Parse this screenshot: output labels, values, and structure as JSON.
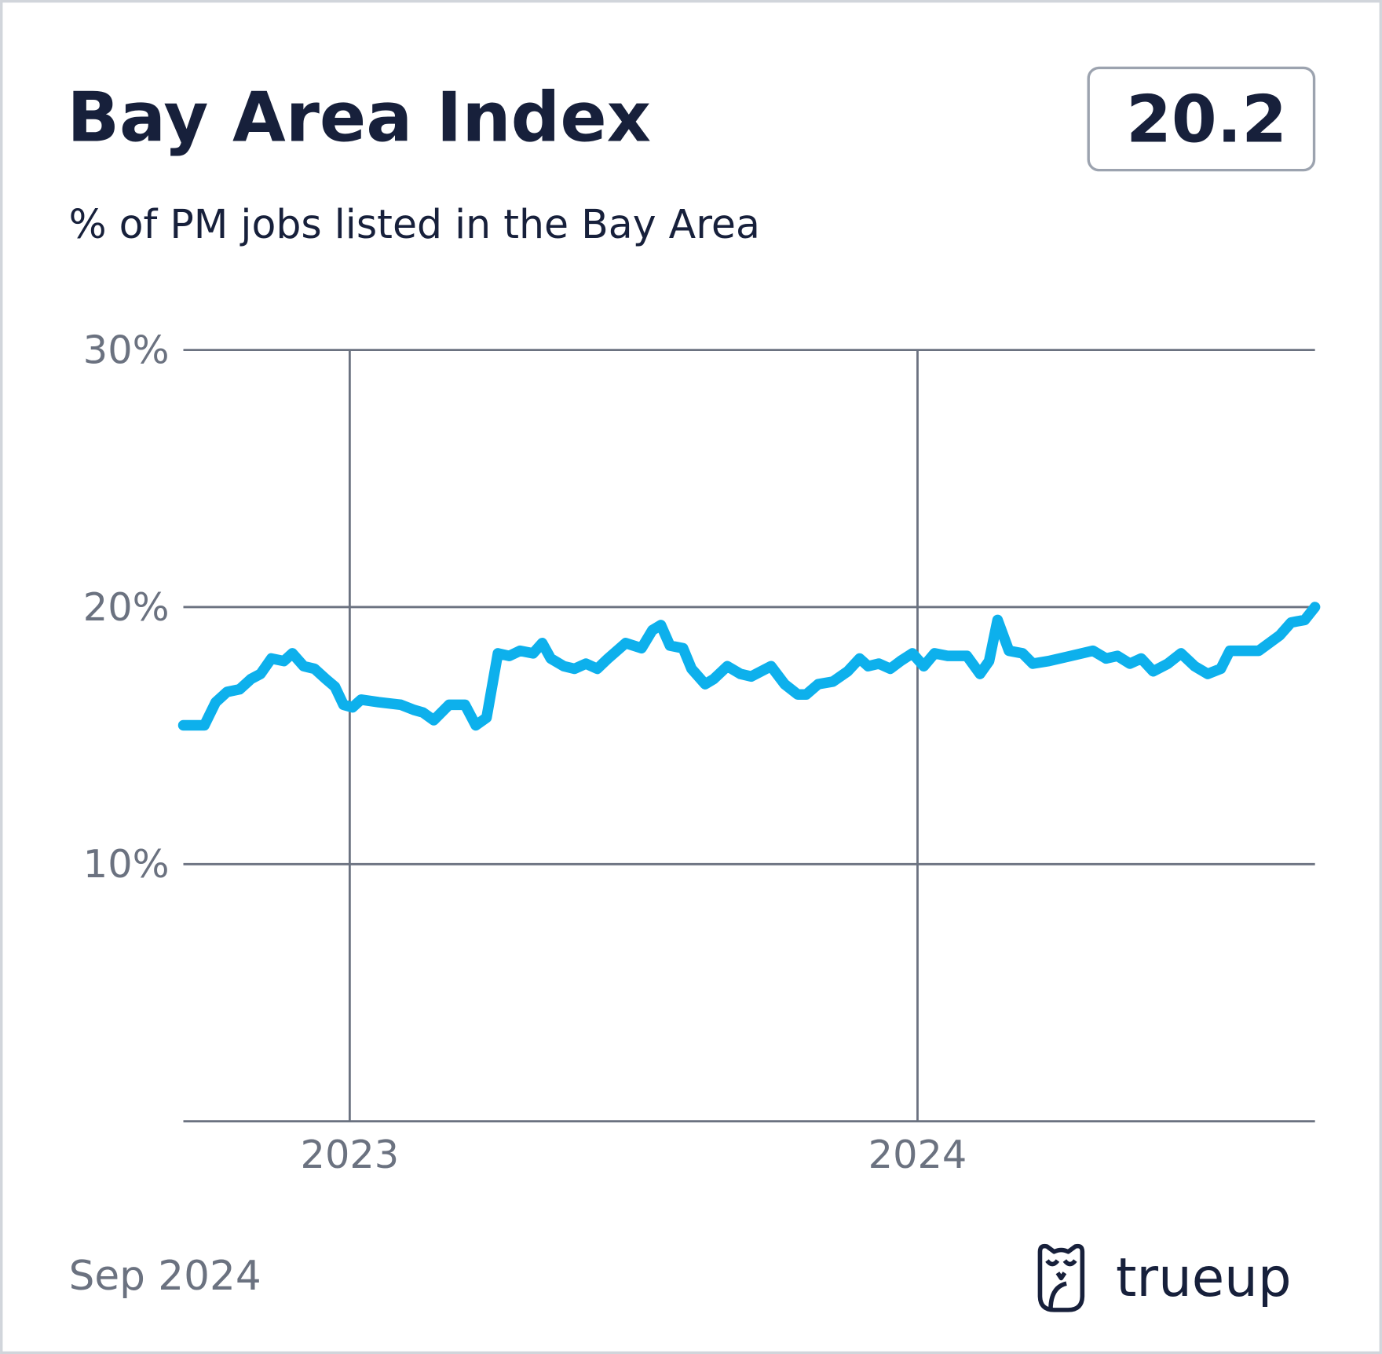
{
  "chart_data": {
    "type": "line",
    "title": "Bay Area Index",
    "subtitle": "% of PM jobs listed in the Bay Area",
    "badge": 20.2,
    "date": "Sep 2024",
    "brand": "trueup",
    "x": [
      2022.707,
      2022.744,
      2022.764,
      2022.784,
      2022.806,
      2022.826,
      2022.843,
      2022.862,
      2022.884,
      2022.899,
      2022.919,
      2022.938,
      2022.958,
      2022.974,
      2022.989,
      2023.005,
      2023.02,
      2023.051,
      2023.09,
      2023.113,
      2023.129,
      2023.148,
      2023.175,
      2023.203,
      2023.222,
      2023.241,
      2023.261,
      2023.281,
      2023.3,
      2023.323,
      2023.339,
      2023.354,
      2023.377,
      2023.396,
      2023.416,
      2023.436,
      2023.455,
      2023.486,
      2023.514,
      2023.533,
      2023.548,
      2023.564,
      2023.587,
      2023.602,
      2023.626,
      2023.641,
      2023.665,
      2023.688,
      2023.707,
      2023.742,
      2023.766,
      2023.789,
      2023.804,
      2023.825,
      2023.851,
      2023.877,
      2023.898,
      2023.913,
      2023.932,
      2023.952,
      2023.97,
      2023.991,
      2024.011,
      2024.03,
      2024.053,
      2024.087,
      2024.11,
      2024.126,
      2024.141,
      2024.161,
      2024.185,
      2024.203,
      2024.231,
      2024.27,
      2024.309,
      2024.332,
      2024.352,
      2024.374,
      2024.394,
      2024.415,
      2024.441,
      2024.464,
      2024.488,
      2024.511,
      2024.534,
      2024.55,
      2024.601,
      2024.638,
      2024.658,
      2024.682,
      2024.7
    ],
    "series": [
      {
        "color": "#0db0ec",
        "values": [
          15.4,
          15.4,
          16.3,
          16.7,
          16.8,
          17.2,
          17.4,
          18.0,
          17.9,
          18.2,
          17.7,
          17.6,
          17.2,
          16.9,
          16.2,
          16.1,
          16.4,
          16.3,
          16.2,
          16.0,
          15.9,
          15.6,
          16.2,
          16.2,
          15.4,
          15.7,
          18.2,
          18.1,
          18.3,
          18.2,
          18.6,
          18.0,
          17.7,
          17.6,
          17.8,
          17.6,
          18.0,
          18.6,
          18.4,
          19.1,
          19.3,
          18.5,
          18.4,
          17.6,
          17.0,
          17.2,
          17.7,
          17.4,
          17.3,
          17.7,
          17.0,
          16.6,
          16.6,
          17.0,
          17.1,
          17.5,
          18.0,
          17.7,
          17.8,
          17.6,
          17.9,
          18.2,
          17.7,
          18.2,
          18.1,
          18.1,
          17.4,
          17.9,
          19.5,
          18.3,
          18.2,
          17.8,
          17.9,
          18.1,
          18.3,
          18.0,
          18.1,
          17.8,
          18.0,
          17.5,
          17.8,
          18.2,
          17.7,
          17.4,
          17.6,
          18.3,
          18.3,
          18.9,
          19.4,
          19.5,
          20.0
        ]
      }
    ],
    "xlim": [
      2022.707,
      2024.7
    ],
    "xticks": [
      2023,
      2024
    ],
    "ylim": [
      0,
      30
    ],
    "yticks": [
      {
        "value": 10,
        "label": "10%"
      },
      {
        "value": 20,
        "label": "20%"
      },
      {
        "value": 30,
        "label": "30%"
      }
    ],
    "grid": true
  }
}
